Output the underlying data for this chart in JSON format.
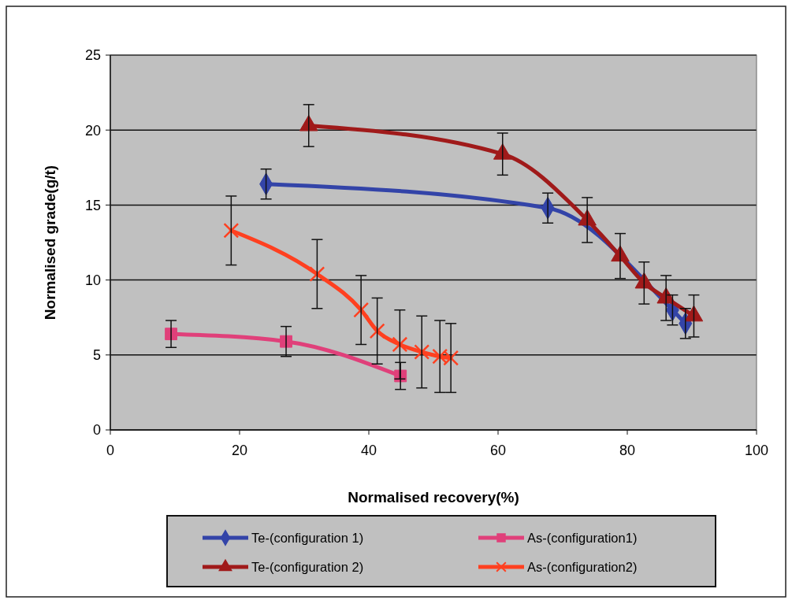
{
  "chart_data": {
    "type": "line",
    "xlabel": "Normalised recovery(%)",
    "ylabel": "Normalised grade(g/t)",
    "xlim": [
      0,
      100
    ],
    "xticks": [
      0,
      20,
      40,
      60,
      80,
      100
    ],
    "ylim": [
      0,
      25
    ],
    "yticks": [
      0,
      5,
      10,
      15,
      20,
      25
    ],
    "grid": "y",
    "legend": "bottom",
    "line_style": "solid",
    "series": [
      {
        "name": "Te-(configuration 1)",
        "color": "#3344a8",
        "marker": "diamond",
        "x": [
          24.1,
          67.7,
          73.9,
          78.9,
          82.7,
          87.0,
          89.0
        ],
        "values": [
          16.4,
          14.8,
          null,
          null,
          null,
          8.0,
          7.1
        ],
        "errors": [
          1,
          1,
          null,
          null,
          null,
          1,
          1
        ]
      },
      {
        "name": "As-(configuration1)",
        "color": "#e0407a",
        "marker": "square",
        "x": [
          9.4,
          27.2,
          44.9
        ],
        "values": [
          6.4,
          5.9,
          3.6
        ],
        "errors": [
          0.9,
          1,
          0.9
        ]
      },
      {
        "name": "Te-(configuration 2)",
        "color": "#a01a1a",
        "marker": "triangle",
        "x": [
          30.7,
          60.7,
          73.8,
          78.9,
          82.6,
          86.0,
          90.3
        ],
        "values": [
          20.3,
          18.4,
          14.0,
          11.6,
          9.8,
          8.8,
          7.6
        ],
        "errors": [
          1.4,
          1.4,
          1.5,
          1.5,
          1.4,
          1.5,
          1.4
        ]
      },
      {
        "name": "As-(configuration2)",
        "color": "#ff4020",
        "marker": "cross",
        "x": [
          18.7,
          32.0,
          38.8,
          41.3,
          44.8,
          48.2,
          51.0,
          52.7
        ],
        "values": [
          13.3,
          10.4,
          8.0,
          6.6,
          5.7,
          5.2,
          4.9,
          4.8
        ],
        "errors": [
          2.3,
          2.3,
          2.3,
          2.2,
          2.3,
          2.4,
          2.4,
          2.3
        ]
      }
    ]
  }
}
